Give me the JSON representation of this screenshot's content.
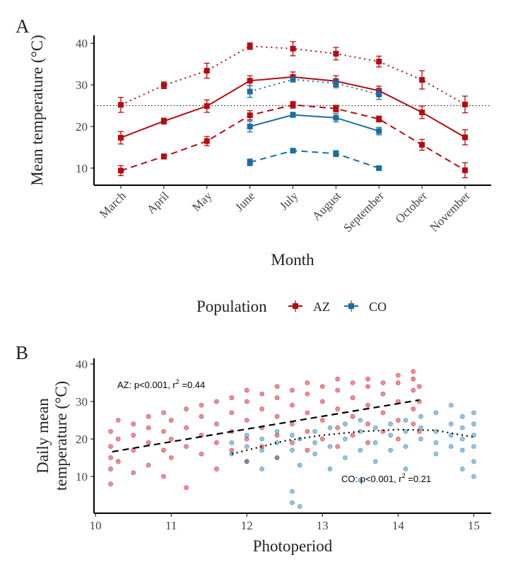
{
  "chart_data": [
    {
      "type": "line",
      "panel": "A",
      "xlabel": "Month",
      "ylabel": "Mean temperature (°C)",
      "categories": [
        "March",
        "April",
        "May",
        "June",
        "July",
        "August",
        "September",
        "October",
        "November"
      ],
      "ylim": [
        5.9,
        41.9
      ],
      "yticks": [
        10,
        20,
        30,
        40
      ],
      "hline": 25,
      "legend_title": "Population",
      "populations": [
        {
          "name": "AZ",
          "color": "#b50a10",
          "lines": [
            {
              "style": "dotted",
              "values": [
                25.2,
                29.9,
                33.4,
                39.3,
                38.7,
                37.5,
                35.6,
                31.2,
                25.3
              ],
              "errors": [
                1.8,
                0.8,
                1.8,
                0.8,
                1.7,
                1.5,
                1.3,
                2.2,
                2.0
              ]
            },
            {
              "style": "solid",
              "values": [
                17.3,
                21.3,
                24.9,
                31.0,
                31.9,
                30.9,
                28.6,
                23.4,
                17.4
              ],
              "errors": [
                1.5,
                0.7,
                1.5,
                1.2,
                1.2,
                1.3,
                1.1,
                1.5,
                1.8
              ]
            },
            {
              "style": "dashed",
              "values": [
                9.4,
                12.8,
                16.5,
                22.7,
                25.2,
                24.3,
                21.8,
                15.6,
                9.5
              ],
              "errors": [
                1.2,
                0.6,
                1.1,
                1.1,
                0.8,
                0.8,
                0.7,
                1.3,
                1.8
              ]
            }
          ]
        },
        {
          "name": "CO",
          "color": "#1b6e9e",
          "lines": [
            {
              "style": "dotted",
              "values": [
                null,
                null,
                null,
                28.4,
                31.3,
                30.4,
                27.7,
                null,
                null
              ],
              "errors": [
                null,
                null,
                null,
                1.4,
                0.5,
                1.1,
                1.2,
                null,
                null
              ]
            },
            {
              "style": "solid",
              "values": [
                null,
                null,
                null,
                20.0,
                22.8,
                22.1,
                18.9,
                null,
                null
              ],
              "errors": [
                null,
                null,
                null,
                1.3,
                0.6,
                1.0,
                0.9,
                null,
                null
              ]
            },
            {
              "style": "dashed",
              "values": [
                null,
                null,
                null,
                11.4,
                14.2,
                13.5,
                10.0,
                null,
                null
              ],
              "errors": [
                null,
                null,
                null,
                0.8,
                0.5,
                0.7,
                0.4,
                null,
                null
              ]
            }
          ]
        }
      ]
    },
    {
      "type": "scatter",
      "panel": "B",
      "xlabel": "Photoperiod",
      "ylabel": [
        "Daily mean",
        "temperature (°C)"
      ],
      "xlim": [
        9.98,
        15.23
      ],
      "xticks": [
        10,
        11,
        12,
        13,
        14,
        15
      ],
      "ylim": [
        0.2,
        41.5
      ],
      "yticks": [
        10,
        20,
        30,
        40
      ],
      "series": [
        {
          "name": "AZ",
          "color": "#c8101a",
          "fit_style": "dashed",
          "annotation": {
            "text": "AZ: p<0.001, r",
            "sup": "2",
            "rest": " =0.44"
          },
          "x": [
            10.2,
            10.2,
            10.2,
            10.2,
            10.2,
            10.3,
            10.3,
            10.3,
            10.5,
            10.5,
            10.5,
            10.5,
            10.7,
            10.7,
            10.7,
            10.7,
            10.9,
            10.9,
            10.9,
            10.9,
            11.0,
            11.0,
            11.0,
            11.2,
            11.2,
            11.2,
            11.2,
            11.4,
            11.4,
            11.4,
            11.4,
            11.6,
            11.6,
            11.6,
            11.6,
            11.8,
            11.8,
            11.8,
            11.8,
            12.0,
            12.0,
            12.0,
            12.0,
            12.0,
            12.2,
            12.2,
            12.2,
            12.2,
            12.4,
            12.4,
            12.4,
            12.4,
            12.4,
            12.6,
            12.6,
            12.6,
            12.6,
            12.8,
            12.8,
            12.8,
            12.8,
            12.8,
            13.0,
            13.0,
            13.0,
            13.0,
            13.2,
            13.2,
            13.2,
            13.2,
            13.2,
            13.4,
            13.4,
            13.4,
            13.4,
            13.6,
            13.6,
            13.6,
            13.6,
            13.6,
            13.8,
            13.8,
            13.8,
            13.8,
            14.0,
            14.0,
            14.0,
            14.0,
            14.0,
            14.2,
            14.2,
            14.2,
            14.2,
            14.2,
            14.28,
            14.28,
            14.28
          ],
          "values": [
            8,
            12,
            15,
            18,
            22,
            20,
            14,
            25,
            17,
            21,
            11,
            24,
            19,
            23,
            13,
            26,
            22,
            17,
            27,
            10,
            20,
            25,
            15,
            23,
            28,
            18,
            7,
            21,
            26,
            16,
            29,
            24,
            19,
            30,
            12,
            27,
            22,
            17,
            31,
            25,
            30,
            20,
            14,
            33,
            28,
            23,
            32,
            18,
            26,
            31,
            21,
            34,
            15,
            29,
            24,
            33,
            19,
            27,
            32,
            22,
            35,
            17,
            30,
            25,
            34,
            20,
            28,
            33,
            23,
            36,
            18,
            31,
            26,
            35,
            21,
            29,
            34,
            24,
            36,
            19,
            32,
            27,
            35,
            22,
            30,
            35,
            25,
            37,
            20,
            33,
            28,
            36,
            24,
            38,
            30,
            22,
            34
          ],
          "fit": {
            "x": [
              10.22,
              14.28
            ],
            "values": [
              16.6,
              30.4
            ]
          }
        },
        {
          "name": "CO",
          "color": "#1f7aad",
          "fit_style": "dotted",
          "annotation": {
            "text": "CO: p<0.001, r",
            "sup": "2",
            "rest": " =0.21"
          },
          "x": [
            11.8,
            11.8,
            12.0,
            12.0,
            12.0,
            12.2,
            12.2,
            12.2,
            12.4,
            12.4,
            12.4,
            12.6,
            12.6,
            12.6,
            12.6,
            12.7,
            12.7,
            12.7,
            12.9,
            12.9,
            12.9,
            13.1,
            13.1,
            13.1,
            13.3,
            13.3,
            13.3,
            13.5,
            13.5,
            13.5,
            13.5,
            13.7,
            13.7,
            13.7,
            13.9,
            13.9,
            13.9,
            14.1,
            14.1,
            14.1,
            14.1,
            14.3,
            14.3,
            14.3,
            14.5,
            14.5,
            14.5,
            14.5,
            14.7,
            14.7,
            14.7,
            14.7,
            14.85,
            14.85,
            14.85,
            14.85,
            14.85,
            15.0,
            15.0,
            15.0,
            15.0,
            15.0,
            15.0
          ],
          "values": [
            16,
            19,
            14,
            18,
            21,
            12,
            17,
            20,
            15,
            19,
            22,
            3,
            6,
            17,
            21,
            2,
            13,
            20,
            16,
            22,
            19,
            18,
            23,
            12,
            20,
            24,
            15,
            17,
            22,
            25,
            9,
            19,
            23,
            14,
            21,
            24,
            17,
            18,
            22,
            25,
            12,
            20,
            23,
            26,
            19,
            22,
            27,
            16,
            21,
            24,
            18,
            29,
            12,
            17,
            20,
            23,
            26,
            10,
            14,
            18,
            21,
            24,
            27
          ],
          "fit": {
            "x": [
              11.8,
              12.5,
              13.0,
              13.5,
              14.0,
              14.5,
              15.0
            ],
            "values": [
              16.0,
              19.5,
              21.0,
              22.0,
              22.5,
              22.3,
              20.5
            ]
          }
        }
      ]
    }
  ]
}
